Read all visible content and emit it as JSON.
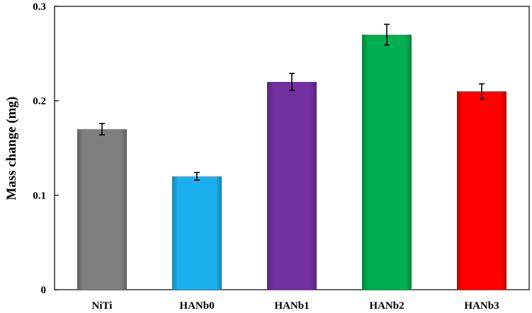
{
  "chart_data": {
    "type": "bar",
    "title": "",
    "xlabel": "",
    "ylabel": "Mass change (mg)",
    "ylim": [
      0,
      0.3
    ],
    "yticks": [
      0,
      0.1,
      0.2,
      0.3
    ],
    "ytick_labels": [
      "0",
      "0.1",
      "0.2",
      "0.3"
    ],
    "grid": false,
    "legend": "none",
    "categories": [
      "NiTi",
      "HANb0",
      "HANb1",
      "HANb2",
      "HANb3"
    ],
    "values": [
      0.17,
      0.12,
      0.22,
      0.27,
      0.21
    ],
    "errors": [
      0.006,
      0.004,
      0.009,
      0.011,
      0.008
    ],
    "colors": [
      "#7f7f7f",
      "#1ab0ee",
      "#7030a0",
      "#00b050",
      "#ff0000"
    ]
  }
}
